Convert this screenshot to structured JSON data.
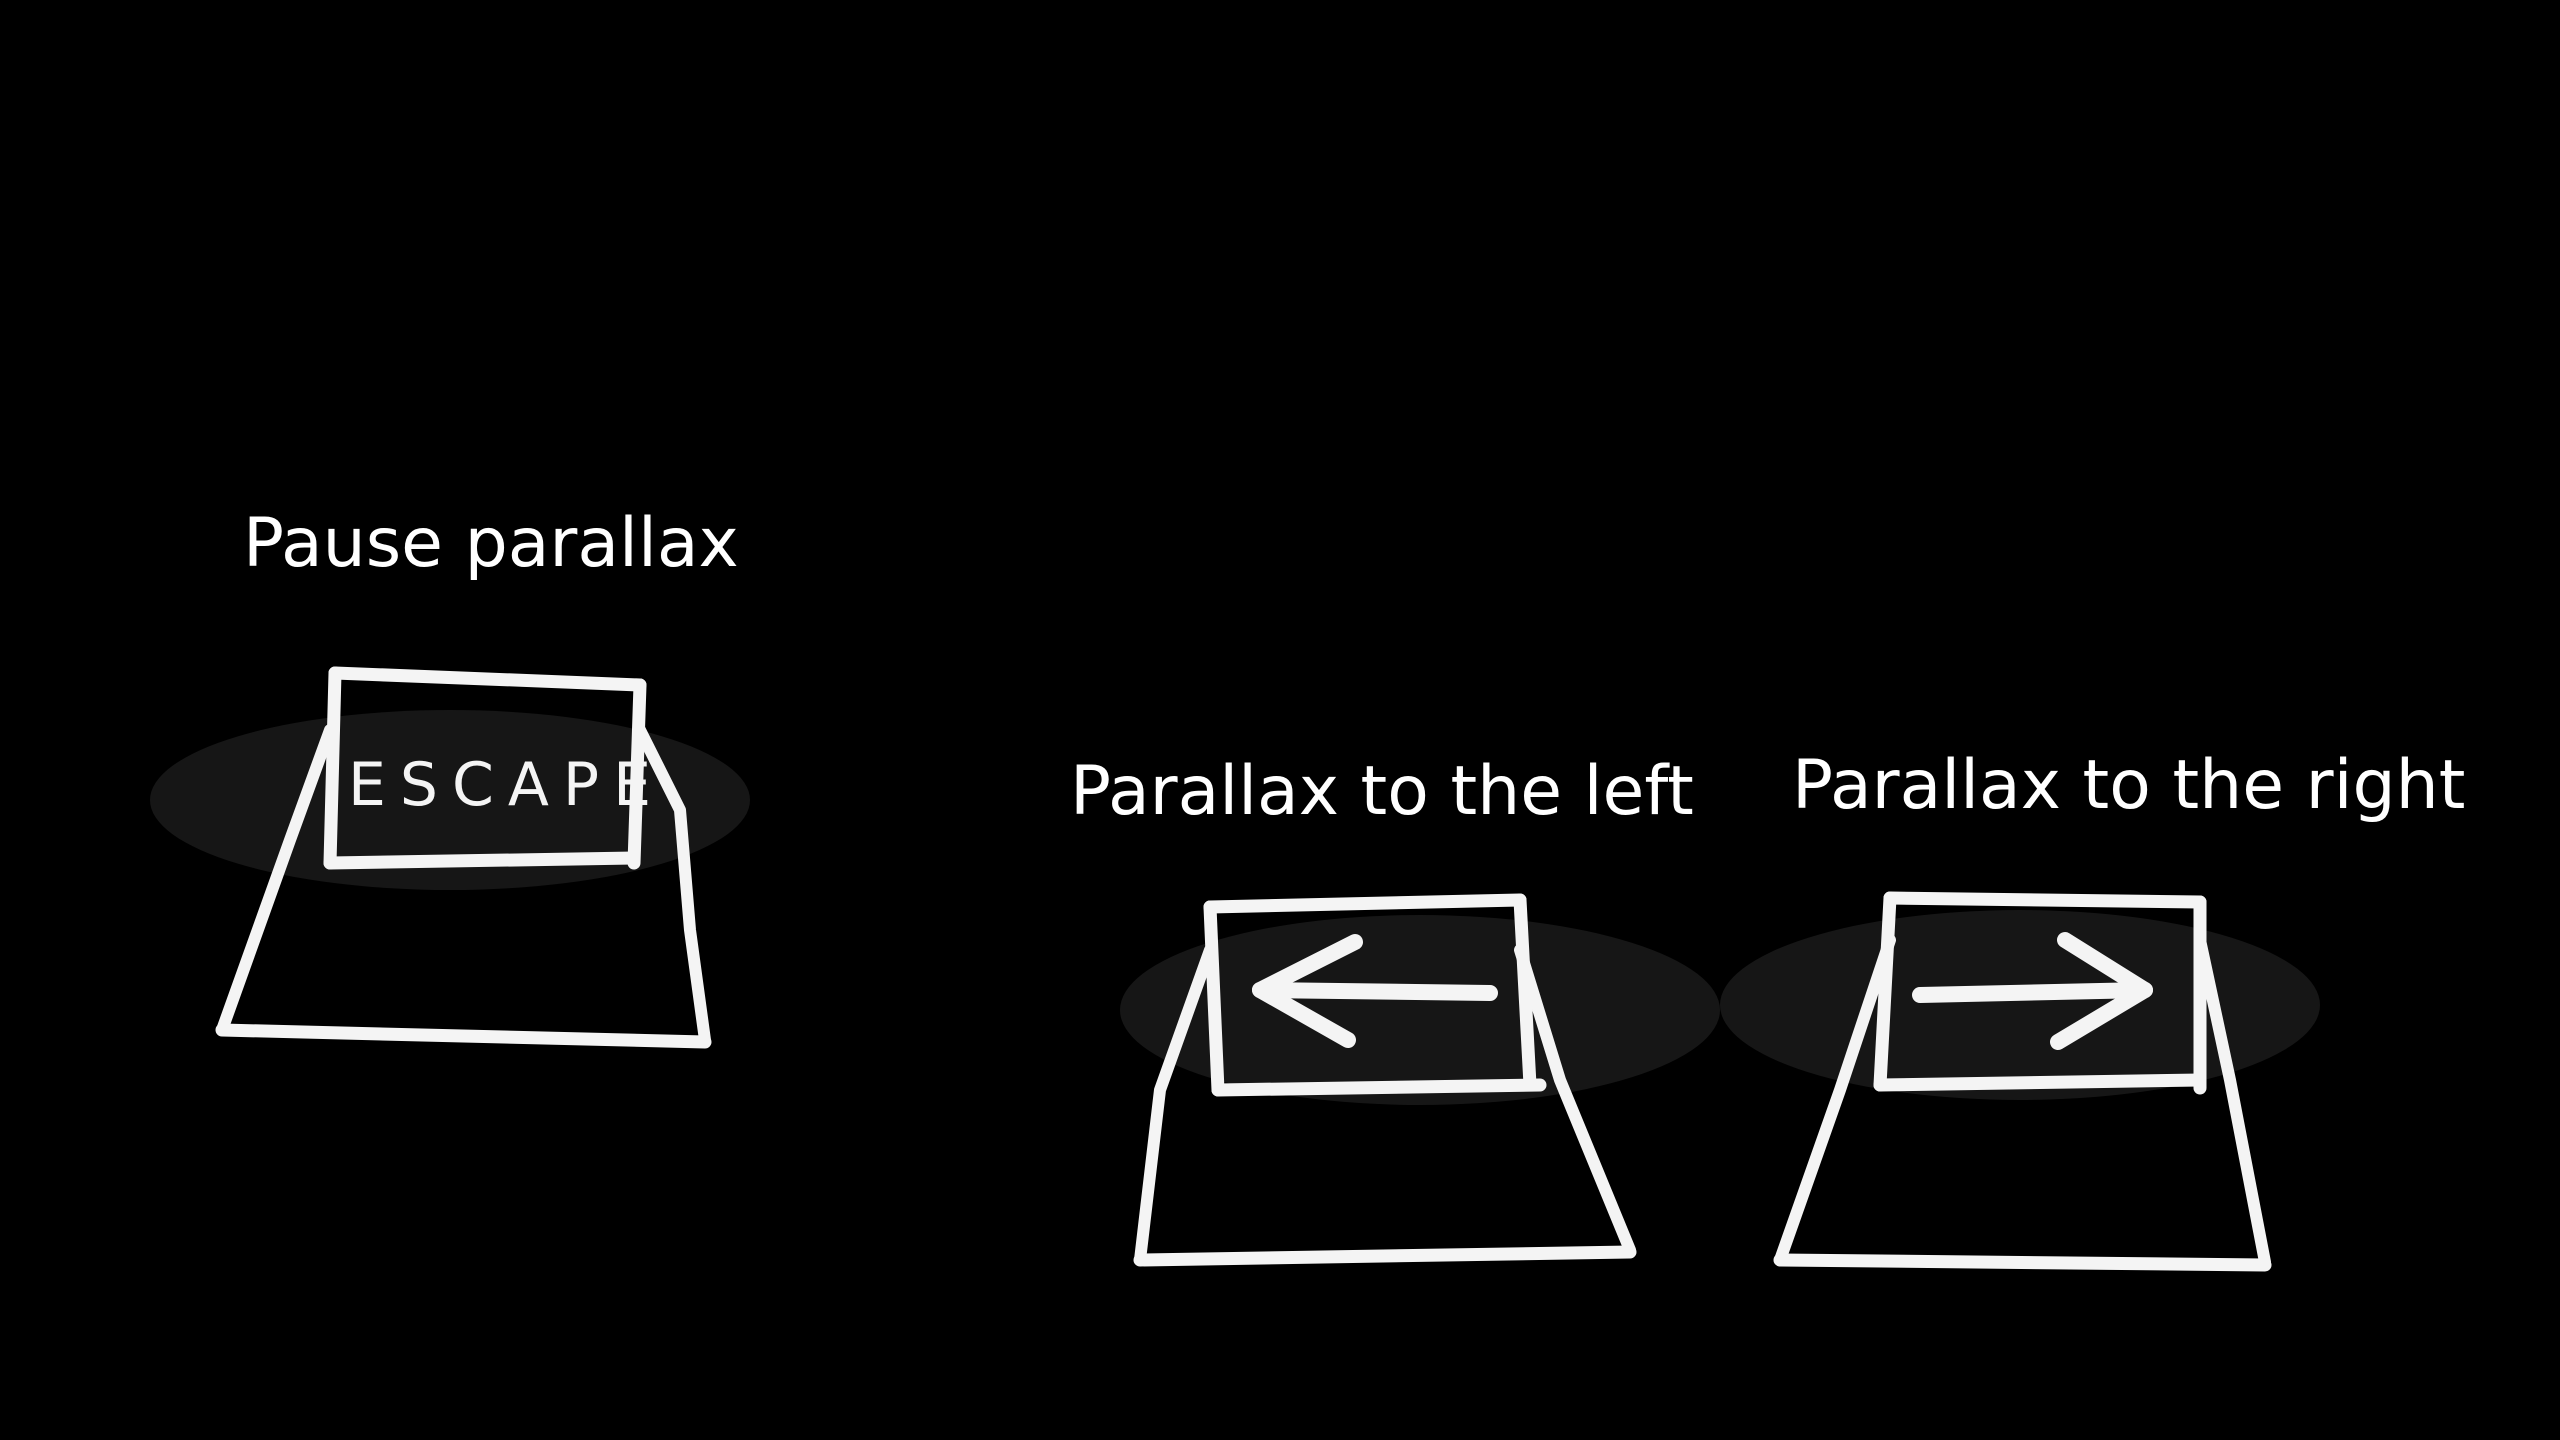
{
  "captions": {
    "pause": "Pause parallax",
    "left": "Parallax to the left",
    "right": "Parallax to the right"
  },
  "keys": {
    "escape": {
      "label": "ESCAPE",
      "icon": "escape-key-icon"
    },
    "left": {
      "icon": "arrow-left-icon"
    },
    "right": {
      "icon": "arrow-right-icon"
    }
  },
  "colors": {
    "background": "#000000",
    "foreground": "#ffffff"
  }
}
